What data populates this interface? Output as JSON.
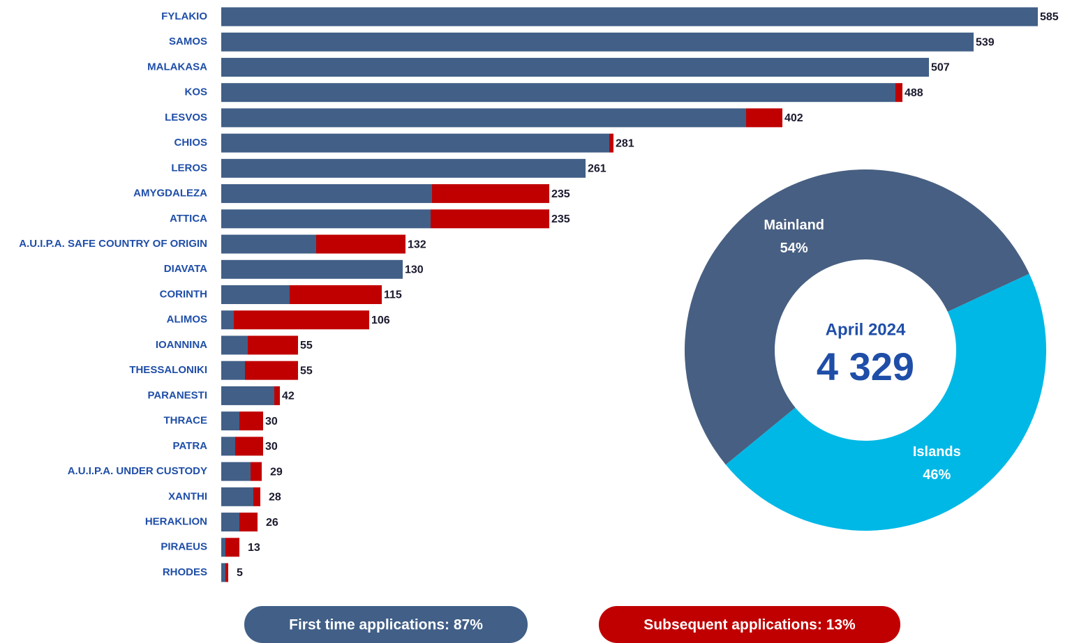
{
  "chart_data": [
    {
      "type": "stacked-hbar",
      "categories": [
        "FYLAKIO",
        "SAMOS",
        "MALAKASA",
        "KOS",
        "LESVOS",
        "CHIOS",
        "LEROS",
        "AMYGDALEZA",
        "ATTICA",
        "A.U.I.P.A. SAFE COUNTRY OF ORIGIN",
        "DIAVATA",
        "CORINTH",
        "ALIMOS",
        "IOANNINA",
        "THESSALONIKI",
        "PARANESTI",
        "THRACE",
        "PATRA",
        "A.U.I.P.A. UNDER CUSTODY",
        "XANTHI",
        "HERAKLION",
        "PIRAEUS",
        "RHODES"
      ],
      "series": [
        {
          "name": "First time applications: 87%",
          "color": "#415f87",
          "values": [
            585,
            539,
            507,
            483,
            376,
            278,
            261,
            151,
            150,
            68,
            130,
            49,
            9,
            19,
            17,
            38,
            13,
            10,
            21,
            23,
            13,
            3,
            3
          ]
        },
        {
          "name": "Subsequent applications: 13%",
          "color": "#c00000",
          "values": [
            0,
            0,
            0,
            5,
            26,
            3,
            0,
            84,
            85,
            64,
            0,
            66,
            97,
            36,
            38,
            4,
            17,
            20,
            8,
            5,
            13,
            10,
            2
          ]
        }
      ],
      "totals": [
        585,
        539,
        507,
        488,
        402,
        281,
        261,
        235,
        235,
        132,
        130,
        115,
        106,
        55,
        55,
        42,
        30,
        30,
        29,
        28,
        26,
        13,
        5
      ]
    },
    {
      "type": "donut",
      "categories": [
        "Mainland",
        "Islands"
      ],
      "values": [
        54,
        46
      ],
      "value_labels": [
        "54%",
        "46%"
      ],
      "colors": [
        "#475f82",
        "#00b8e6"
      ],
      "center_title": "April 2024",
      "total": 4329,
      "total_label": "4 329"
    }
  ]
}
